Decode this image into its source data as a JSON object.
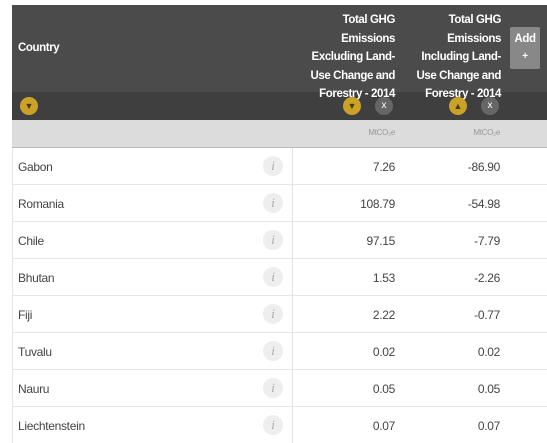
{
  "header": {
    "country": "Country",
    "columns": [
      {
        "title": "Total GHG Emissions Excluding Land-Use Change and Forestry - 2014",
        "unit": "MtCO₂e",
        "remove": "x"
      },
      {
        "title": "Total GHG Emissions Including Land-Use Change and Forestry - 2014",
        "unit": "MtCO₂e",
        "remove": "x"
      }
    ],
    "add": "Add",
    "add_icon": "+"
  },
  "rows": [
    {
      "country": "Gabon",
      "info": "i",
      "values": [
        "7.26",
        "-86.90"
      ]
    },
    {
      "country": "Romania",
      "info": "i",
      "values": [
        "108.79",
        "-54.98"
      ]
    },
    {
      "country": "Chile",
      "info": "i",
      "values": [
        "97.15",
        "-7.79"
      ]
    },
    {
      "country": "Bhutan",
      "info": "i",
      "values": [
        "1.53",
        "-2.26"
      ]
    },
    {
      "country": "Fiji",
      "info": "i",
      "values": [
        "2.22",
        "-0.77"
      ]
    },
    {
      "country": "Tuvalu",
      "info": "i",
      "values": [
        "0.02",
        "0.02"
      ]
    },
    {
      "country": "Nauru",
      "info": "i",
      "values": [
        "0.05",
        "0.05"
      ]
    },
    {
      "country": "Liechtenstein",
      "info": "i",
      "values": [
        "0.07",
        "0.07"
      ]
    }
  ]
}
